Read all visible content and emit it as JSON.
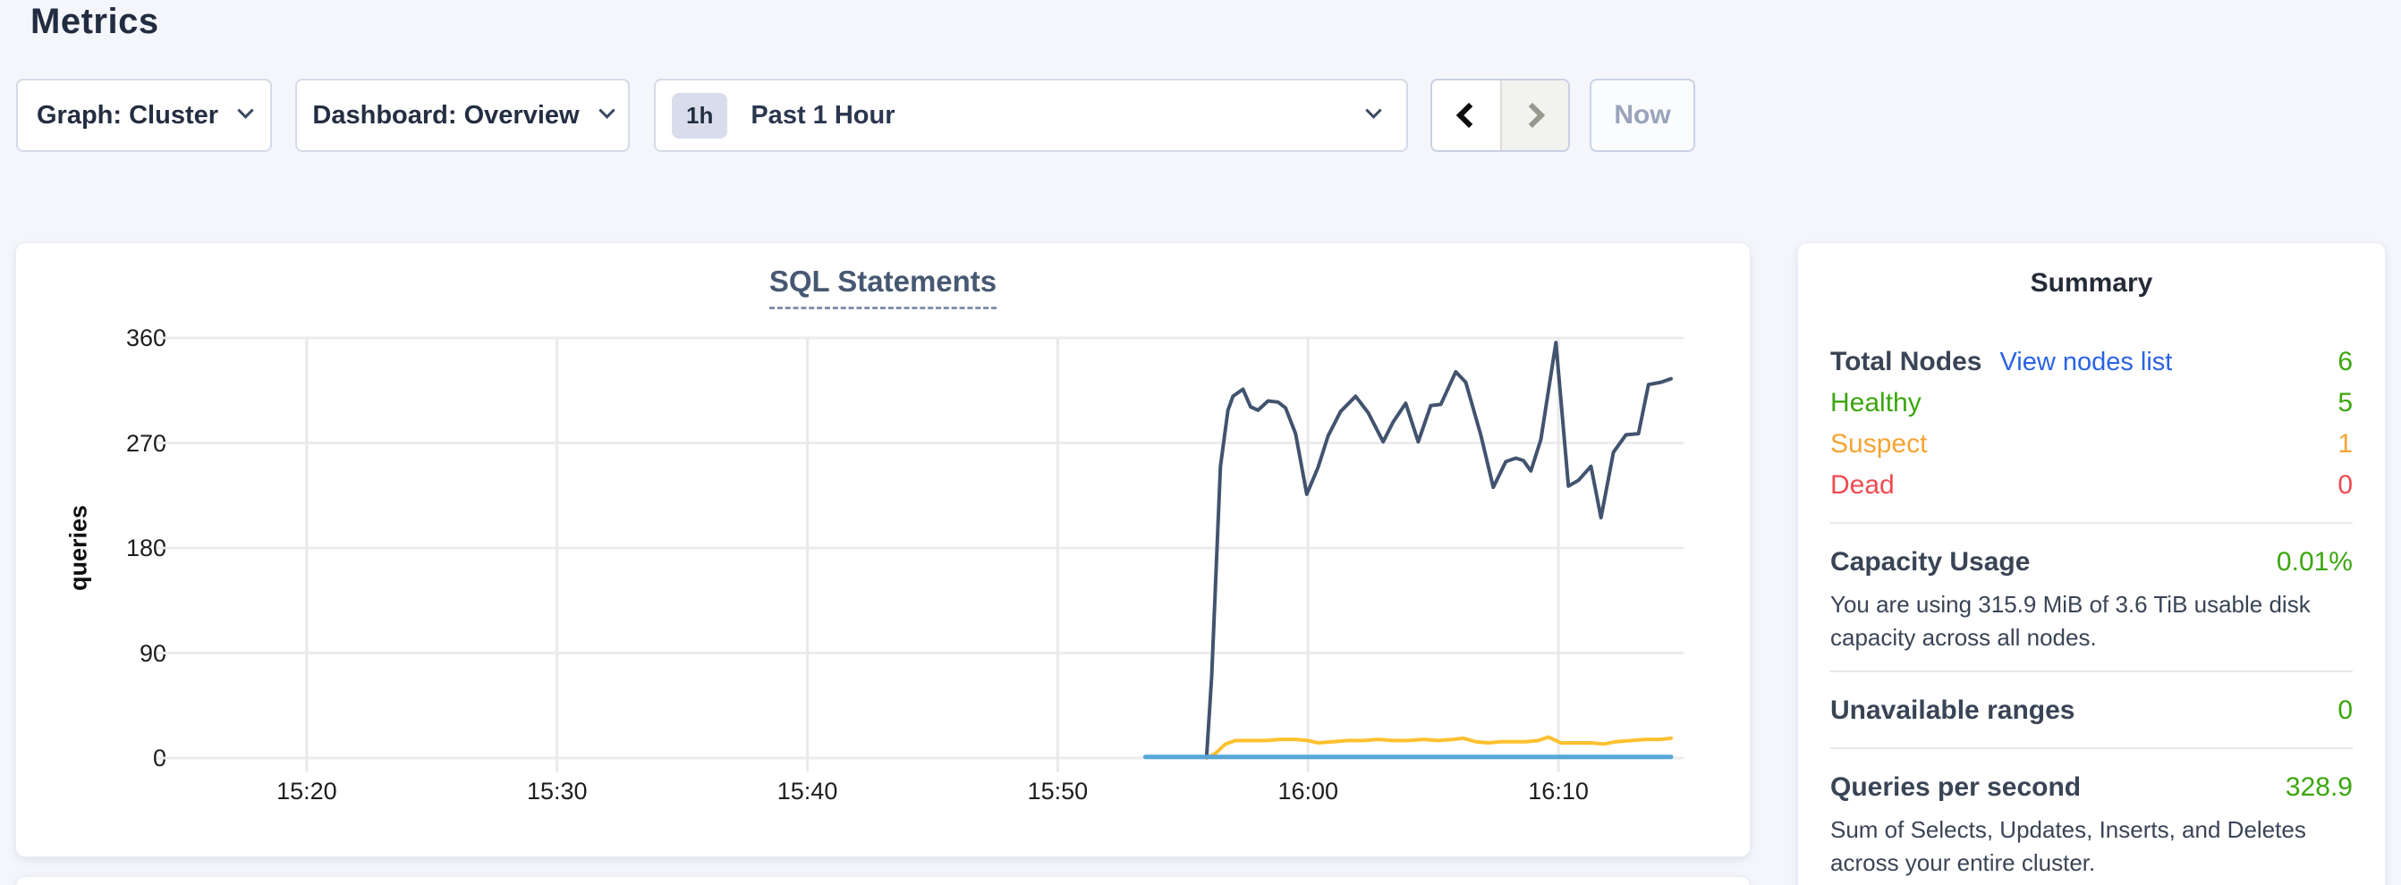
{
  "page_title": "Metrics",
  "toolbar": {
    "graph_selector": "Graph: Cluster",
    "dashboard_selector": "Dashboard: Overview",
    "time_window_badge": "1h",
    "time_window_label": "Past 1 Hour",
    "now_button": "Now"
  },
  "summary": {
    "title": "Summary",
    "total_nodes_label": "Total Nodes",
    "view_nodes_link": "View nodes list",
    "total_nodes_value": "6",
    "node_statuses": [
      {
        "label": "Healthy",
        "value": "5",
        "status": "healthy"
      },
      {
        "label": "Suspect",
        "value": "1",
        "status": "suspect"
      },
      {
        "label": "Dead",
        "value": "0",
        "status": "dead"
      }
    ],
    "capacity_label": "Capacity Usage",
    "capacity_value": "0.01%",
    "capacity_description": "You are using 315.9 MiB of 3.6 TiB usable disk capacity across all nodes.",
    "unavailable_label": "Unavailable ranges",
    "unavailable_value": "0",
    "qps_label": "Queries per second",
    "qps_value": "328.9",
    "qps_description": "Sum of Selects, Updates, Inserts, and Deletes across your entire cluster."
  },
  "colors": {
    "green": "#3ba60d",
    "orange": "#f5a432",
    "red": "#ef4b50",
    "link_blue": "#2a63e4",
    "grid": "#ececec",
    "series_dark_blue": "#42536f",
    "series_yellow": "#fdc02f",
    "series_light_blue": "#57a6d8"
  },
  "chart_data": {
    "type": "line",
    "title": "SQL Statements",
    "ylabel": "queries",
    "xlabel": "",
    "grid": true,
    "legend_position": "none",
    "x_unit": "minutes after 15:00",
    "x_domain": [
      14,
      75
    ],
    "y_domain": [
      0,
      360
    ],
    "yticks": [
      0,
      90,
      180,
      270,
      360
    ],
    "xticks": [
      {
        "t": 20,
        "label": "15:20"
      },
      {
        "t": 30,
        "label": "15:30"
      },
      {
        "t": 40,
        "label": "15:40"
      },
      {
        "t": 50,
        "label": "15:50"
      },
      {
        "t": 60,
        "label": "16:00"
      },
      {
        "t": 70,
        "label": "16:10"
      }
    ],
    "series": [
      {
        "name": "dark-blue",
        "color": "#42536f",
        "stroke_width": 4,
        "points": [
          [
            55.95,
            2
          ],
          [
            56.15,
            70
          ],
          [
            56.5,
            250
          ],
          [
            56.8,
            298
          ],
          [
            57.0,
            310
          ],
          [
            57.4,
            316
          ],
          [
            57.7,
            301
          ],
          [
            58.0,
            298
          ],
          [
            58.4,
            306
          ],
          [
            58.8,
            305
          ],
          [
            59.1,
            300
          ],
          [
            59.5,
            278
          ],
          [
            59.95,
            226
          ],
          [
            60.4,
            249
          ],
          [
            60.8,
            276
          ],
          [
            61.3,
            297
          ],
          [
            61.9,
            310
          ],
          [
            62.4,
            296
          ],
          [
            63.0,
            271
          ],
          [
            63.4,
            288
          ],
          [
            63.9,
            304
          ],
          [
            64.4,
            271
          ],
          [
            64.9,
            302
          ],
          [
            65.3,
            303
          ],
          [
            65.9,
            331
          ],
          [
            66.3,
            322
          ],
          [
            66.9,
            277
          ],
          [
            67.4,
            232
          ],
          [
            67.9,
            254
          ],
          [
            68.3,
            257
          ],
          [
            68.6,
            255
          ],
          [
            68.9,
            246
          ],
          [
            69.3,
            273
          ],
          [
            69.9,
            356
          ],
          [
            70.4,
            233
          ],
          [
            70.8,
            238
          ],
          [
            71.3,
            250
          ],
          [
            71.7,
            206
          ],
          [
            72.2,
            262
          ],
          [
            72.7,
            277
          ],
          [
            73.2,
            278
          ],
          [
            73.6,
            320
          ],
          [
            74.1,
            322
          ],
          [
            74.5,
            325
          ]
        ]
      },
      {
        "name": "yellow",
        "color": "#fdc02f",
        "stroke_width": 4,
        "points": [
          [
            55.95,
            0
          ],
          [
            56.3,
            4
          ],
          [
            56.7,
            12
          ],
          [
            57.1,
            15
          ],
          [
            57.7,
            15
          ],
          [
            58.3,
            15
          ],
          [
            58.9,
            16
          ],
          [
            59.5,
            16
          ],
          [
            60.0,
            15
          ],
          [
            60.4,
            13
          ],
          [
            61.0,
            14
          ],
          [
            61.6,
            15
          ],
          [
            62.2,
            15
          ],
          [
            62.8,
            16
          ],
          [
            63.4,
            15
          ],
          [
            64.0,
            15
          ],
          [
            64.6,
            16
          ],
          [
            65.2,
            15
          ],
          [
            65.8,
            16
          ],
          [
            66.2,
            17
          ],
          [
            66.7,
            14
          ],
          [
            67.2,
            13
          ],
          [
            67.7,
            14
          ],
          [
            68.2,
            14
          ],
          [
            68.7,
            14
          ],
          [
            69.2,
            15
          ],
          [
            69.6,
            18
          ],
          [
            70.1,
            13
          ],
          [
            70.7,
            13
          ],
          [
            71.3,
            13
          ],
          [
            71.8,
            12
          ],
          [
            72.3,
            14
          ],
          [
            72.9,
            15
          ],
          [
            73.5,
            16
          ],
          [
            74.1,
            16
          ],
          [
            74.5,
            17
          ]
        ]
      },
      {
        "name": "light-blue",
        "color": "#57a6d8",
        "stroke_width": 5,
        "points": [
          [
            53.5,
            1
          ],
          [
            74.5,
            1
          ]
        ]
      }
    ]
  }
}
